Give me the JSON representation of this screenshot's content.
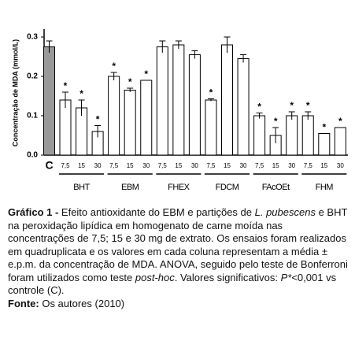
{
  "chart_data": {
    "type": "bar",
    "y_label": "Concentração de MDA (mmol/L)",
    "ylim": [
      0,
      0.32
    ],
    "yticks": [
      {
        "value": 0,
        "label": "0.0"
      },
      0.1,
      0.2,
      0.3
    ],
    "control": {
      "label": "C",
      "value": 0.275,
      "error": 0.015,
      "color": "#999999"
    },
    "bar_color": "#ffffff",
    "groups": [
      {
        "name": "BHT",
        "categories": [
          "7,5",
          "15",
          "30"
        ],
        "values": [
          0.14,
          0.12,
          0.06
        ],
        "errors": [
          0.02,
          0.02,
          0.015
        ],
        "stars": [
          "*",
          "*",
          "*"
        ]
      },
      {
        "name": "EBM",
        "categories": [
          "7,5",
          "15",
          "30"
        ],
        "values": [
          0.2,
          0.165,
          0.19
        ],
        "errors": [
          0.01,
          0.005,
          0
        ],
        "stars": [
          "*",
          "*",
          "*"
        ]
      },
      {
        "name": "FHEX",
        "categories": [
          "7,5",
          "15",
          "30"
        ],
        "values": [
          0.275,
          0.28,
          0.255
        ],
        "errors": [
          0.015,
          0.01,
          0.01
        ],
        "stars": [
          null,
          null,
          null
        ]
      },
      {
        "name": "FDCM",
        "categories": [
          "7,5",
          "15",
          "30"
        ],
        "values": [
          0.14,
          0.28,
          0.245
        ],
        "errors": [
          0.003,
          0.02,
          0.01
        ],
        "stars": [
          "*",
          null,
          null
        ]
      },
      {
        "name": "FAcOEt",
        "categories": [
          "7,5",
          "15",
          "30"
        ],
        "values": [
          0.1,
          0.05,
          0.1
        ],
        "errors": [
          0.007,
          0.02,
          0.01
        ],
        "stars": [
          "*",
          "*",
          "*"
        ]
      },
      {
        "name": "FHM",
        "categories": [
          "7,5",
          "15",
          "30"
        ],
        "values": [
          0.1,
          0.055,
          0.07
        ],
        "errors": [
          0.01,
          0,
          0
        ],
        "stars": [
          "*",
          "*",
          "*"
        ]
      }
    ]
  },
  "caption": {
    "label": "Gráfico 1 -",
    "segments": [
      {
        "text": " Efeito antioxidante do EBM e partições de "
      },
      {
        "text": "L. pubescens",
        "italic": true
      },
      {
        "text": " e BHT na peroxidação lipídica em homogenato de carne moída nas concentrações de 7,5; 15 e 30 mg de extrato. Os ensaios foram realizados em quadruplicata e os valores em cada coluna representam a média ± e.p.m. da concentração de MDA. ANOVA, seguido pelo teste de Bonferroni foram utilizados como teste "
      },
      {
        "text": "post-hoc",
        "italic": true
      },
      {
        "text": ". Valores significativos: "
      },
      {
        "text": "P*",
        "italic": true
      },
      {
        "text": "<0,001 vs controle (C)."
      }
    ],
    "source_label": "Fonte:",
    "source": " Os autores (2010)"
  }
}
